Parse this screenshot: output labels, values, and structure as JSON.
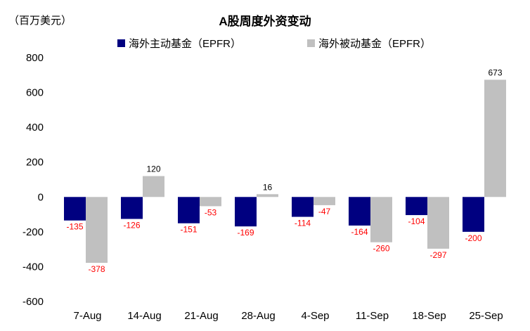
{
  "chart_data": {
    "type": "bar",
    "title": "A股周度外资变动",
    "unit_label": "（百万美元）",
    "categories": [
      "7-Aug",
      "14-Aug",
      "21-Aug",
      "28-Aug",
      "4-Sep",
      "11-Sep",
      "18-Sep",
      "25-Sep"
    ],
    "series": [
      {
        "name": "海外主动基金（EPFR）",
        "color": "#000080",
        "label_color": "#ff0000",
        "values": [
          -135,
          -126,
          -151,
          -169,
          -114,
          -164,
          -104,
          -200
        ]
      },
      {
        "name": "海外被动基金（EPFR）",
        "color": "#c0c0c0",
        "label_color_negative": "#ff0000",
        "label_color_positive": "#000000",
        "values": [
          -378,
          120,
          -53,
          16,
          -47,
          -260,
          -297,
          673
        ]
      }
    ],
    "ylim": [
      -600,
      800
    ],
    "yticks": [
      800,
      600,
      400,
      200,
      0,
      -200,
      -400,
      -600
    ],
    "grid": false,
    "legend_position": "top"
  }
}
